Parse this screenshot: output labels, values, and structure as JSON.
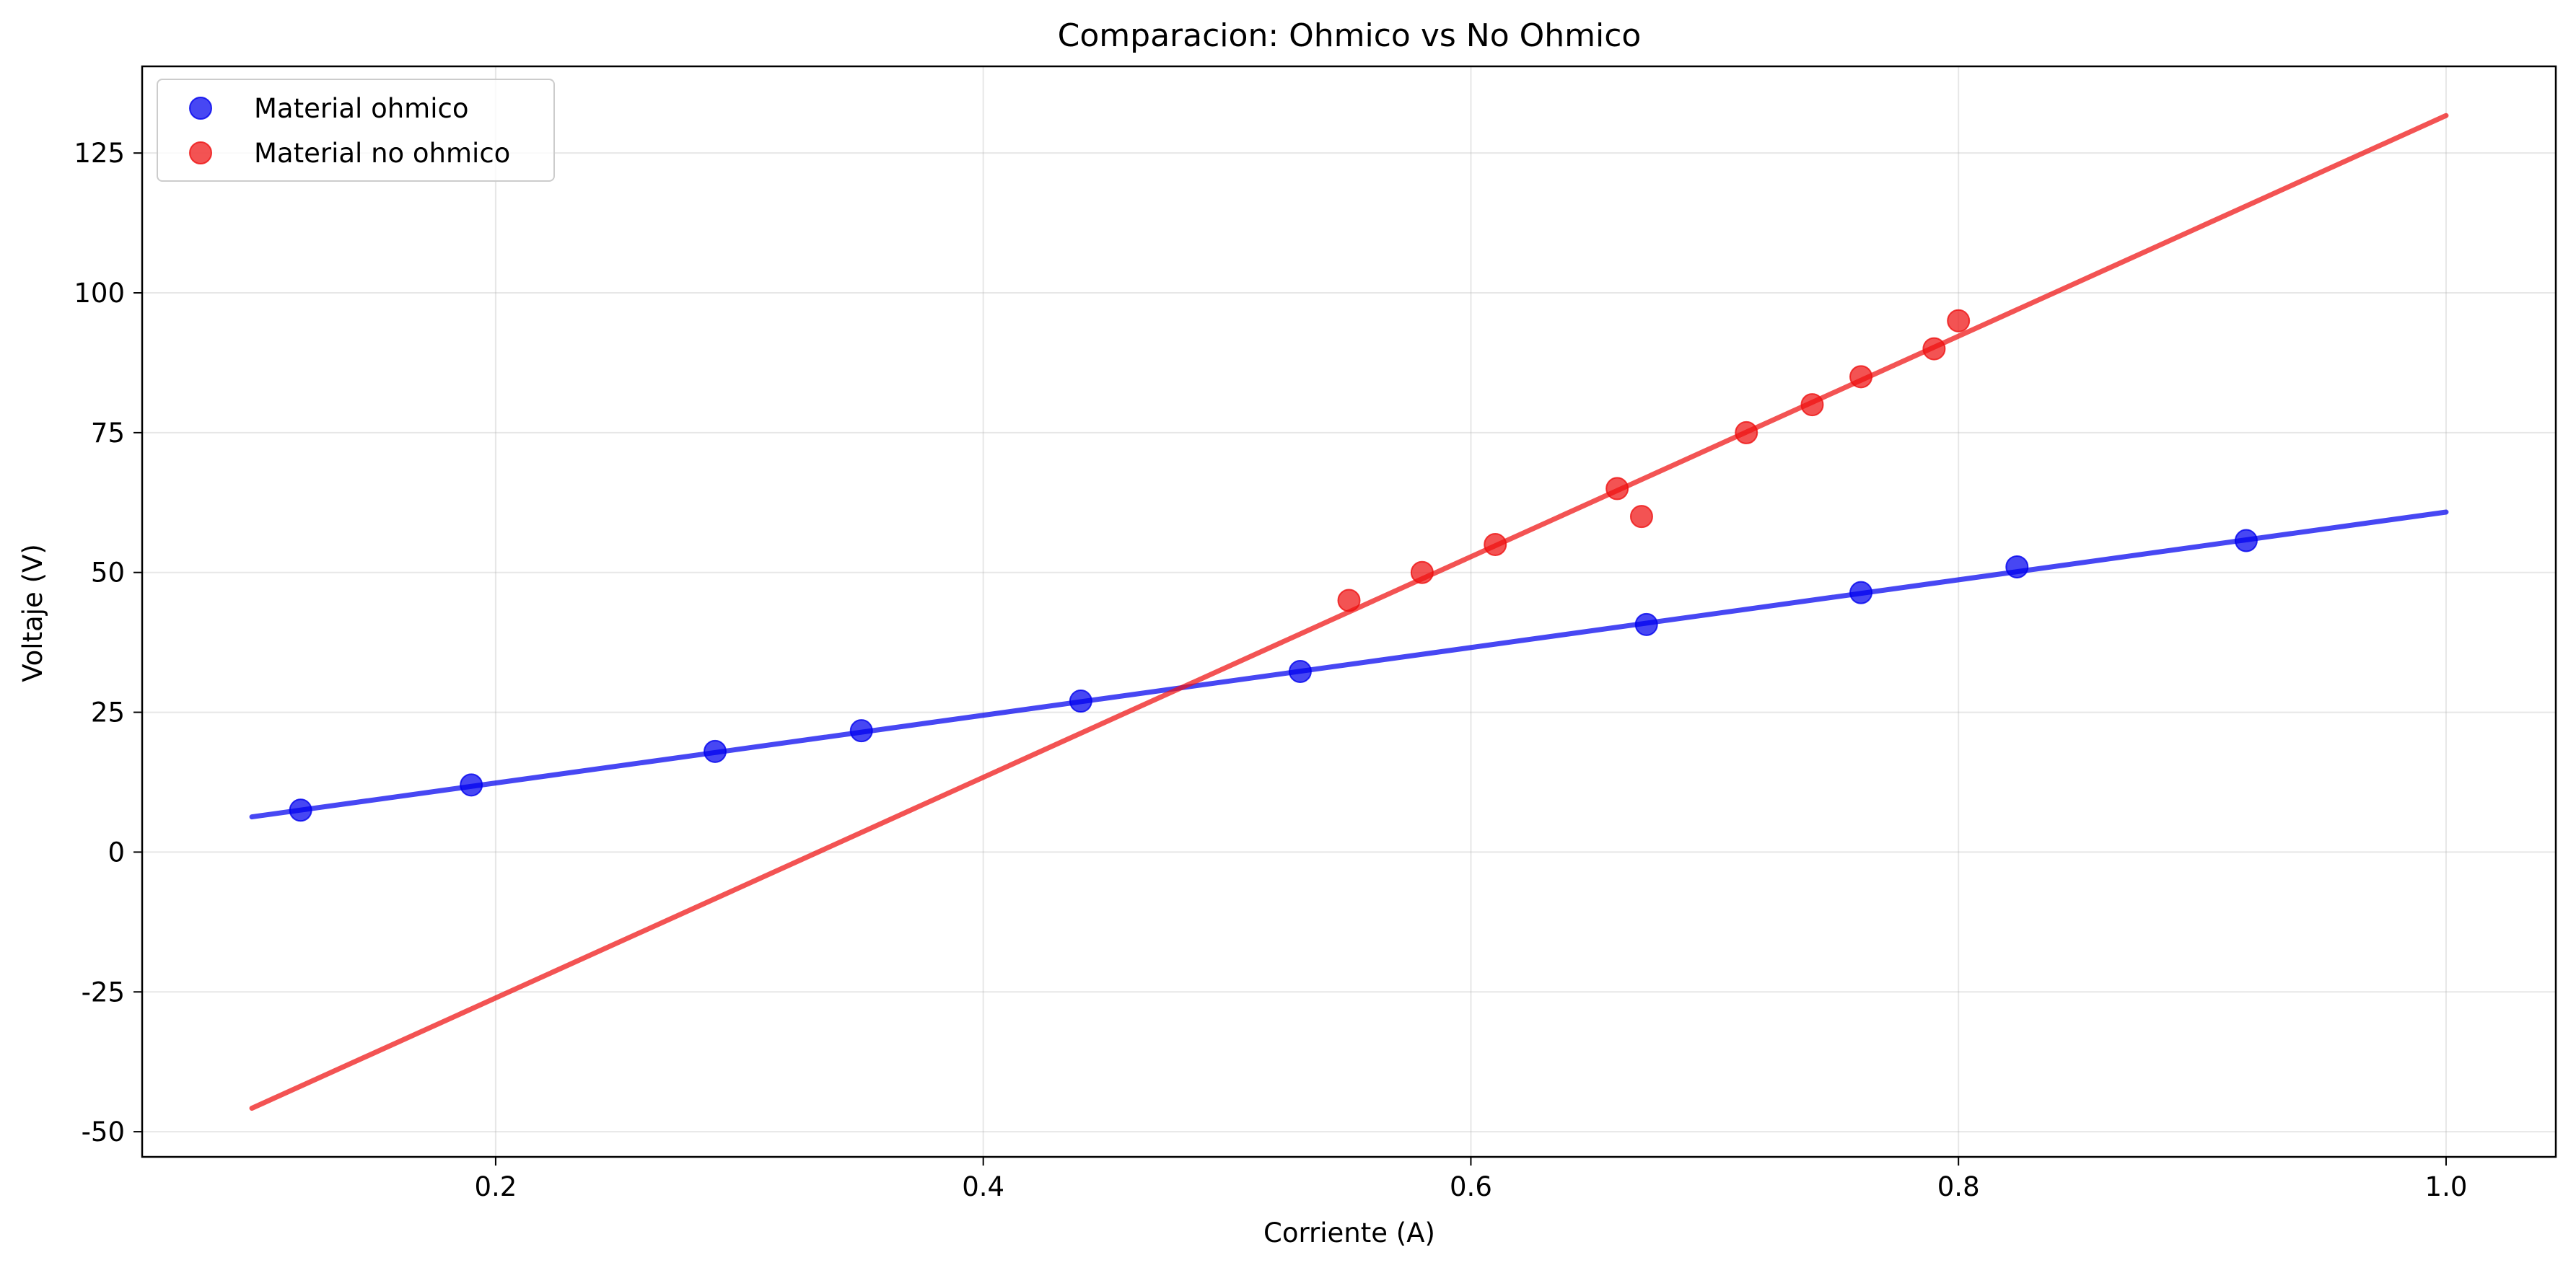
{
  "chart_data": {
    "type": "scatter",
    "title": "Comparacion: Ohmico vs No Ohmico",
    "xlabel": "Corriente (A)",
    "ylabel": "Voltaje (V)",
    "xlim": [
      0.055,
      1.045
    ],
    "ylim": [
      -54.5,
      140.5
    ],
    "x_ticks": [
      0.2,
      0.4,
      0.6,
      0.8,
      1.0
    ],
    "x_tick_labels": [
      "0.2",
      "0.4",
      "0.6",
      "0.8",
      "1.0"
    ],
    "y_ticks": [
      -50,
      -25,
      0,
      25,
      50,
      75,
      100,
      125
    ],
    "y_tick_labels": [
      "-50",
      "-25",
      "0",
      "25",
      "50",
      "75",
      "100",
      "125"
    ],
    "grid": true,
    "legend_position": "top-left",
    "series": [
      {
        "name": "Material ohmico",
        "color": "#0000ee",
        "points": [
          {
            "x": 0.12,
            "y": 7.5
          },
          {
            "x": 0.19,
            "y": 12.0
          },
          {
            "x": 0.29,
            "y": 18.0
          },
          {
            "x": 0.35,
            "y": 21.7
          },
          {
            "x": 0.44,
            "y": 27.0
          },
          {
            "x": 0.53,
            "y": 32.3
          },
          {
            "x": 0.672,
            "y": 40.7
          },
          {
            "x": 0.76,
            "y": 46.4
          },
          {
            "x": 0.824,
            "y": 51.0
          },
          {
            "x": 0.918,
            "y": 55.7
          }
        ],
        "fit_line": {
          "x": [
            0.1,
            1.0
          ],
          "y": [
            6.3,
            60.8
          ]
        }
      },
      {
        "name": "Material no ohmico",
        "color": "#ee1111",
        "points": [
          {
            "x": 0.55,
            "y": 45.0
          },
          {
            "x": 0.58,
            "y": 50.0
          },
          {
            "x": 0.61,
            "y": 55.0
          },
          {
            "x": 0.66,
            "y": 65.0
          },
          {
            "x": 0.67,
            "y": 60.0
          },
          {
            "x": 0.713,
            "y": 75.0
          },
          {
            "x": 0.74,
            "y": 80.0
          },
          {
            "x": 0.76,
            "y": 85.0
          },
          {
            "x": 0.79,
            "y": 90.0
          },
          {
            "x": 0.8,
            "y": 95.0
          }
        ],
        "fit_line": {
          "x": [
            0.1,
            1.0
          ],
          "y": [
            -45.8,
            131.7
          ]
        }
      }
    ]
  }
}
